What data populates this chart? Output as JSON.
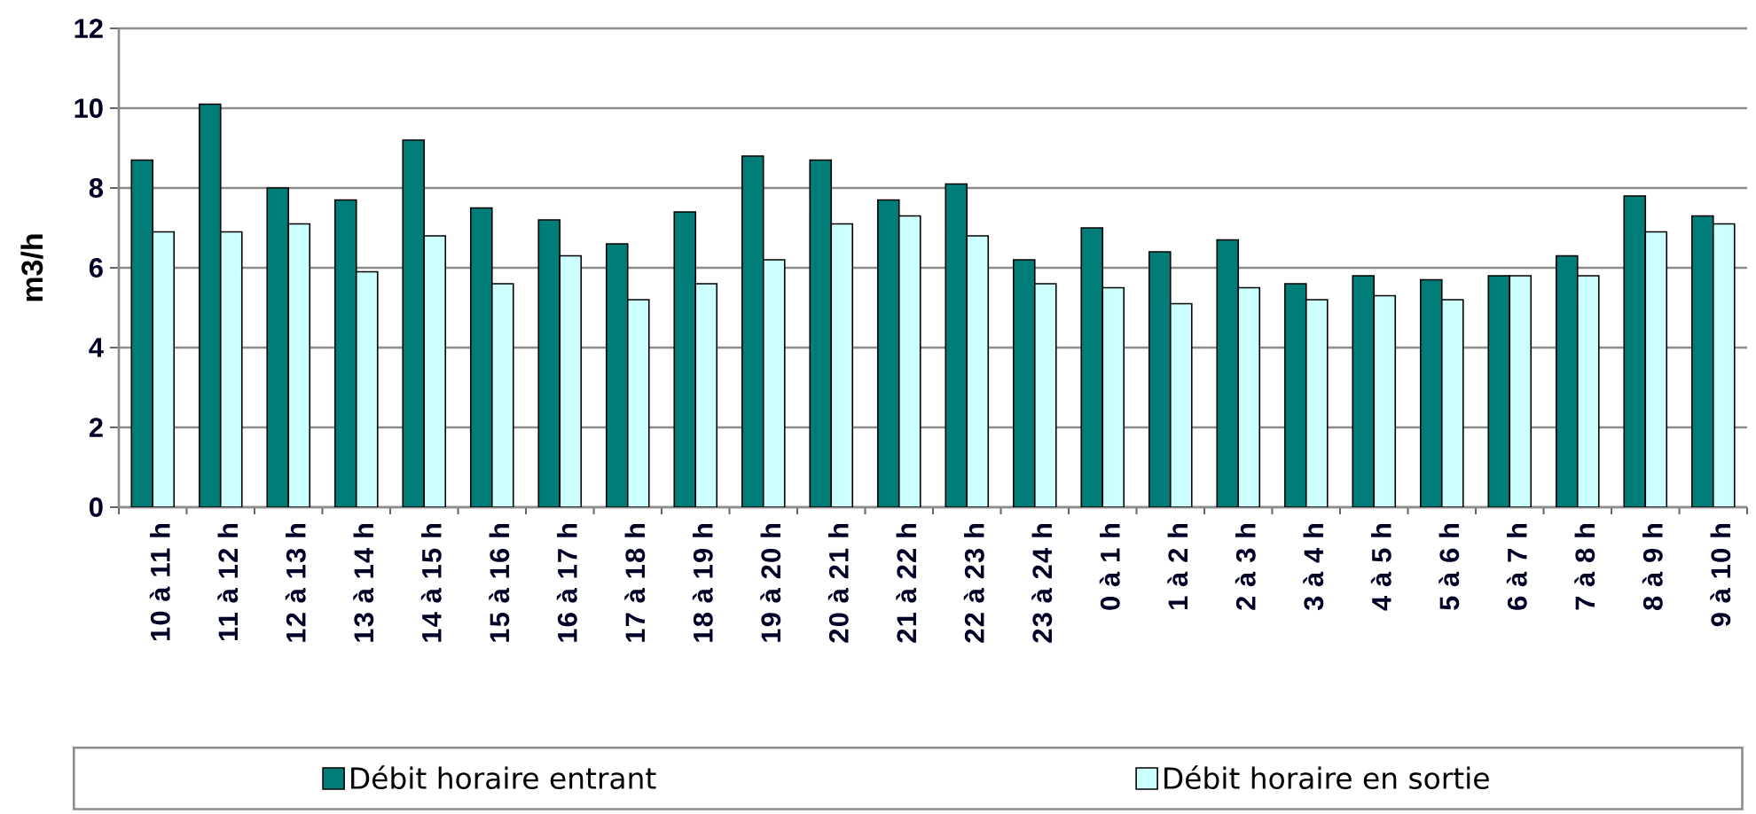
{
  "chart_data": {
    "type": "bar",
    "ylabel": "m3/h",
    "categories": [
      "10 à 11 h",
      "11 à 12 h",
      "12 à 13 h",
      "13 à 14 h",
      "14 à 15 h",
      "15 à 16 h",
      "16 à 17 h",
      "17 à 18 h",
      "18 à 19 h",
      "19 à 20 h",
      "20 à 21 h",
      "21 à 22 h",
      "22 à 23 h",
      "23 à 24 h",
      "0 à 1 h",
      "1 à 2 h",
      "2 à 3 h",
      "3 à 4 h",
      "4 à 5 h",
      "5 à 6 h",
      "6 à 7 h",
      "7 à 8 h",
      "8 à 9 h",
      "9 à 10 h"
    ],
    "series": [
      {
        "name": "Débit horaire entrant",
        "color": "#007d78",
        "values": [
          8.7,
          10.1,
          8.0,
          7.7,
          9.2,
          7.5,
          7.2,
          6.6,
          7.4,
          8.8,
          8.7,
          7.7,
          8.1,
          6.2,
          7.0,
          6.4,
          6.7,
          5.6,
          5.8,
          5.7,
          5.8,
          6.3,
          7.8,
          7.3
        ]
      },
      {
        "name": "Débit horaire en sortie",
        "color": "#ccffff",
        "values": [
          6.9,
          6.9,
          7.1,
          5.9,
          6.8,
          5.6,
          6.3,
          5.2,
          5.6,
          6.2,
          7.1,
          7.3,
          6.8,
          5.6,
          5.5,
          5.1,
          5.5,
          5.2,
          5.3,
          5.2,
          5.8,
          5.8,
          6.9,
          7.1
        ]
      }
    ],
    "ylim": [
      0,
      12
    ],
    "yticks": [
      0,
      2,
      4,
      6,
      8,
      10,
      12
    ],
    "grid": "y",
    "legend": "bottom"
  }
}
